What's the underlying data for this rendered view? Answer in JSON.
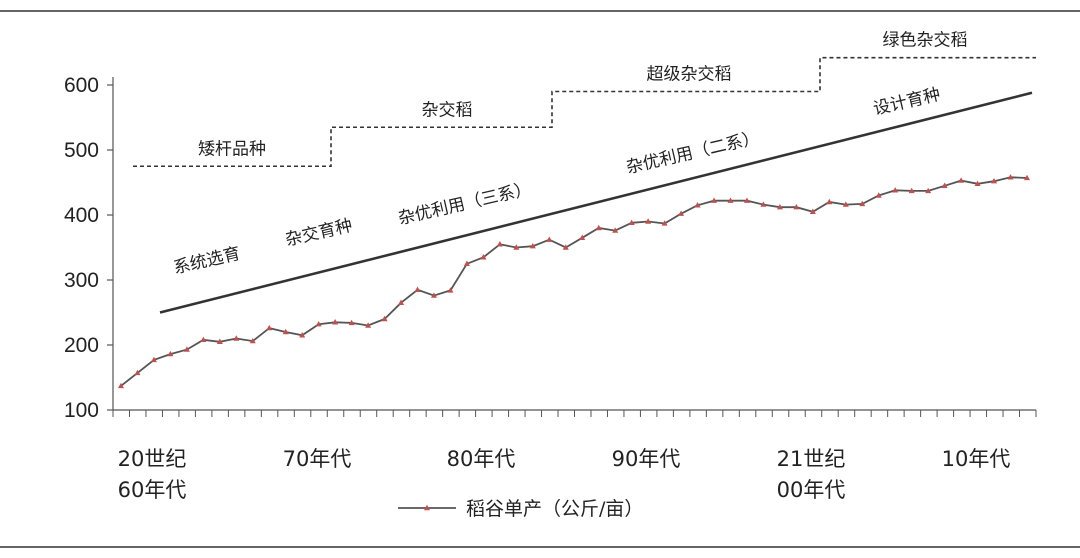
{
  "chart_data": {
    "type": "line",
    "title": "",
    "xlabel": "",
    "ylabel": "",
    "ylim": [
      100,
      600
    ],
    "yticks": [
      100,
      200,
      300,
      400,
      500,
      600
    ],
    "category_labels": [
      [
        "20世纪",
        "60年代"
      ],
      [
        "70年代"
      ],
      [
        "80年代"
      ],
      [
        "90年代"
      ],
      [
        "21世纪",
        "00年代"
      ],
      [
        "10年代"
      ]
    ],
    "series": [
      {
        "name": "稻谷单产（公斤/亩）",
        "color": "#c0504d",
        "marker": "triangle",
        "values": [
          137,
          157,
          177,
          186,
          193,
          208,
          205,
          210,
          206,
          226,
          220,
          215,
          232,
          235,
          234,
          230,
          240,
          265,
          285,
          276,
          284,
          325,
          335,
          355,
          350,
          352,
          362,
          350,
          365,
          380,
          376,
          388,
          390,
          387,
          402,
          415,
          422,
          422,
          422,
          416,
          412,
          412,
          405,
          420,
          416,
          417,
          430,
          438,
          437,
          437,
          445,
          453,
          448,
          452,
          458,
          457
        ]
      }
    ],
    "trend_line": {
      "start": 250,
      "end": 588,
      "color": "#333333"
    },
    "stage_levels": [
      {
        "label": "矮杆品种",
        "value": 475
      },
      {
        "label": "杂交稻",
        "value": 535
      },
      {
        "label": "超级杂交稻",
        "value": 590
      },
      {
        "label": "绿色杂交稻",
        "value": 642
      }
    ],
    "annotations": [
      {
        "text": "系统选育",
        "angle": -13
      },
      {
        "text": "杂交育种",
        "angle": -13
      },
      {
        "text": "杂优利用（三系）",
        "angle": -13
      },
      {
        "text": "杂优利用（二系）",
        "angle": -13
      },
      {
        "text": "设计育种",
        "angle": -13
      }
    ],
    "legend": {
      "label": "稻谷单产（公斤/亩）",
      "position": "bottom"
    },
    "grid": false
  }
}
